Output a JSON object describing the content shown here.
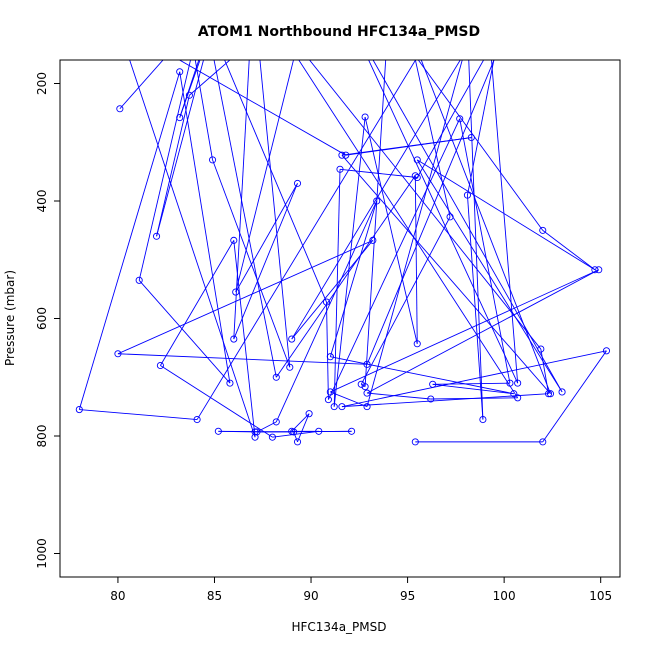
{
  "chart_data": {
    "type": "line",
    "title": "ATOM1 Northbound HFC134a_PMSD",
    "xlabel": "HFC134a_PMSD",
    "ylabel": "Pressure (mbar)",
    "xlim": [
      77,
      106
    ],
    "ylim": [
      1040,
      160
    ],
    "y_reversed": true,
    "x_ticks": [
      80,
      85,
      90,
      95,
      100,
      105
    ],
    "x_tick_labels": [
      "80",
      "85",
      "90",
      "95",
      "100",
      "105"
    ],
    "y_ticks": [
      200,
      400,
      600,
      800,
      1000
    ],
    "y_tick_labels": [
      "200",
      "400",
      "600",
      "800",
      "1000"
    ],
    "grid": false,
    "legend": "none",
    "line_color": "#0000ff",
    "marker": "open-circle",
    "series": [
      {
        "points": [
          [
            80.1,
            243
          ],
          [
            85.3,
            50
          ],
          [
            83.2,
            258
          ],
          [
            85.0,
            90
          ],
          [
            82.0,
            460
          ],
          [
            83.7,
            220
          ],
          [
            90.0,
            40
          ],
          [
            86.1,
            555
          ],
          [
            89.3,
            370
          ],
          [
            86.0,
            635
          ],
          [
            87.0,
            40
          ],
          [
            88.9,
            683
          ],
          [
            84.9,
            330
          ],
          [
            83.9,
            140
          ],
          [
            81.1,
            535
          ],
          [
            85.8,
            710
          ],
          [
            83.2,
            180
          ],
          [
            78.0,
            755
          ],
          [
            84.1,
            772
          ],
          [
            98.0,
            20
          ],
          [
            98.9,
            772
          ],
          [
            98.1,
            390
          ],
          [
            100.3,
            20
          ],
          [
            89.0,
            635
          ],
          [
            93.2,
            467
          ],
          [
            80.0,
            660
          ],
          [
            92.9,
            678
          ],
          [
            101.0,
            40
          ],
          [
            95.5,
            360
          ],
          [
            91.5,
            346
          ],
          [
            91.2,
            750
          ],
          [
            92.8,
            257
          ],
          [
            95.5,
            643
          ],
          [
            95.4,
            357
          ],
          [
            88.2,
            700
          ],
          [
            84.5,
            80
          ],
          [
            90.8,
            572
          ],
          [
            90.9,
            738
          ],
          [
            97.7,
            260
          ],
          [
            100.3,
            710
          ],
          [
            96.3,
            712
          ],
          [
            100.5,
            728
          ],
          [
            91.0,
            665
          ],
          [
            93.4,
            400
          ],
          [
            88.2,
            776
          ],
          [
            87.2,
            793
          ],
          [
            92.1,
            792
          ],
          [
            87.1,
            793
          ],
          [
            85.2,
            792
          ],
          [
            89.1,
            793
          ],
          [
            89.3,
            810
          ],
          [
            89.9,
            762
          ],
          [
            89.0,
            792
          ],
          [
            90.4,
            792
          ],
          [
            88.0,
            802
          ],
          [
            82.2,
            680
          ],
          [
            86.0,
            467
          ],
          [
            87.1,
            802
          ],
          [
            80.0,
            100
          ],
          [
            91.8,
            322
          ],
          [
            98.3,
            292
          ],
          [
            91.6,
            322
          ],
          [
            102.4,
            728
          ],
          [
            95.0,
            100
          ],
          [
            97.2,
            427
          ],
          [
            92.6,
            712
          ],
          [
            92.8,
            716
          ],
          [
            94.0,
            90
          ],
          [
            102.0,
            450
          ],
          [
            104.7,
            517
          ],
          [
            95.5,
            330
          ],
          [
            103.0,
            725
          ],
          [
            92.0,
            90
          ],
          [
            100.7,
            710
          ],
          [
            99.0,
            20
          ],
          [
            92.9,
            750
          ],
          [
            91.0,
            725
          ],
          [
            104.9,
            517
          ],
          [
            92.9,
            727
          ],
          [
            96.2,
            737
          ],
          [
            100.7,
            735
          ],
          [
            87.0,
            40
          ],
          [
            101.9,
            652
          ],
          [
            102.3,
            728
          ],
          [
            91.6,
            750
          ],
          [
            105.3,
            655
          ],
          [
            102.0,
            810
          ],
          [
            95.4,
            810
          ]
        ]
      }
    ]
  }
}
